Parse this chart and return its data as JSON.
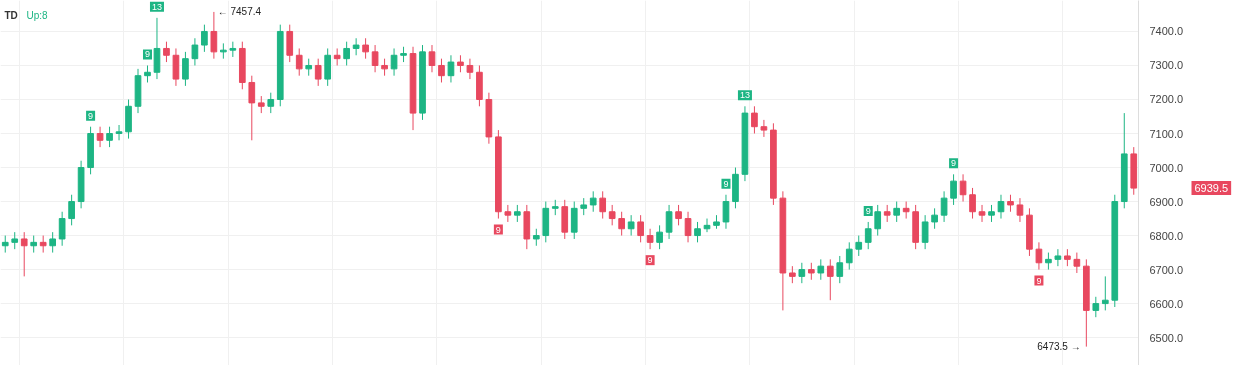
{
  "chart_data": {
    "type": "candlestick",
    "categories": [
      null,
      null,
      null,
      null,
      null,
      null,
      null,
      null,
      null,
      null,
      null,
      null,
      null,
      null,
      null,
      null,
      null,
      null,
      null,
      null,
      null,
      null,
      null,
      null,
      null,
      null,
      null,
      null,
      null,
      null,
      null,
      null,
      null,
      null,
      null,
      null,
      null,
      null,
      null,
      null,
      null,
      null,
      null,
      null,
      null,
      null,
      null,
      null,
      null,
      null,
      null,
      null,
      null,
      null,
      null,
      null,
      null,
      null,
      null,
      null,
      null,
      null,
      null,
      null,
      null,
      null,
      null,
      null,
      null,
      null,
      null,
      null,
      null,
      null,
      null,
      null,
      null,
      null,
      null,
      null,
      null,
      null,
      null,
      null,
      null,
      null,
      null,
      null,
      null,
      null,
      null,
      null,
      null,
      null,
      null,
      null,
      null,
      null,
      null,
      null,
      null,
      null,
      null,
      null,
      null,
      null,
      null,
      null,
      null,
      null,
      null,
      null,
      null,
      null,
      null,
      null,
      null,
      null,
      null,
      null
    ],
    "ohlc": [
      [
        6770,
        6800,
        6750,
        6780
      ],
      [
        6780,
        6810,
        6760,
        6790
      ],
      [
        6790,
        6810,
        6680,
        6770
      ],
      [
        6770,
        6800,
        6750,
        6780
      ],
      [
        6780,
        6800,
        6750,
        6770
      ],
      [
        6770,
        6810,
        6750,
        6790
      ],
      [
        6790,
        6870,
        6770,
        6850
      ],
      [
        6850,
        6920,
        6830,
        6900
      ],
      [
        6900,
        7020,
        6880,
        7000
      ],
      [
        7000,
        7120,
        6980,
        7100
      ],
      [
        7100,
        7120,
        7060,
        7080
      ],
      [
        7080,
        7120,
        7060,
        7100
      ],
      [
        7100,
        7125,
        7080,
        7105
      ],
      [
        7105,
        7200,
        7085,
        7180
      ],
      [
        7180,
        7290,
        7160,
        7270
      ],
      [
        7270,
        7300,
        7250,
        7280
      ],
      [
        7280,
        7440,
        7260,
        7350
      ],
      [
        7350,
        7370,
        7310,
        7330
      ],
      [
        7330,
        7350,
        7240,
        7260
      ],
      [
        7260,
        7340,
        7240,
        7320
      ],
      [
        7320,
        7380,
        7300,
        7360
      ],
      [
        7360,
        7420,
        7340,
        7400
      ],
      [
        7400,
        7457.4,
        7320,
        7340
      ],
      [
        7340,
        7365,
        7320,
        7345
      ],
      [
        7345,
        7370,
        7325,
        7350
      ],
      [
        7350,
        7370,
        7230,
        7250
      ],
      [
        7250,
        7270,
        7080,
        7190
      ],
      [
        7190,
        7210,
        7160,
        7180
      ],
      [
        7180,
        7220,
        7160,
        7200
      ],
      [
        7200,
        7420,
        7180,
        7400
      ],
      [
        7400,
        7420,
        7310,
        7330
      ],
      [
        7330,
        7350,
        7270,
        7290
      ],
      [
        7290,
        7320,
        7270,
        7300
      ],
      [
        7300,
        7320,
        7240,
        7260
      ],
      [
        7260,
        7350,
        7240,
        7330
      ],
      [
        7330,
        7350,
        7300,
        7320
      ],
      [
        7320,
        7370,
        7300,
        7350
      ],
      [
        7350,
        7380,
        7330,
        7360
      ],
      [
        7360,
        7380,
        7320,
        7340
      ],
      [
        7340,
        7360,
        7280,
        7300
      ],
      [
        7300,
        7320,
        7270,
        7290
      ],
      [
        7290,
        7350,
        7270,
        7330
      ],
      [
        7330,
        7355,
        7310,
        7335
      ],
      [
        7335,
        7355,
        7110,
        7160
      ],
      [
        7160,
        7360,
        7140,
        7340
      ],
      [
        7340,
        7360,
        7280,
        7300
      ],
      [
        7300,
        7320,
        7250,
        7270
      ],
      [
        7270,
        7330,
        7250,
        7310
      ],
      [
        7310,
        7330,
        7280,
        7300
      ],
      [
        7300,
        7320,
        7260,
        7280
      ],
      [
        7280,
        7300,
        7180,
        7200
      ],
      [
        7200,
        7220,
        7070,
        7090
      ],
      [
        7090,
        7110,
        6850,
        6870
      ],
      [
        6870,
        6890,
        6840,
        6860
      ],
      [
        6860,
        6890,
        6840,
        6870
      ],
      [
        6870,
        6890,
        6760,
        6790
      ],
      [
        6790,
        6820,
        6770,
        6800
      ],
      [
        6800,
        6900,
        6780,
        6880
      ],
      [
        6880,
        6905,
        6860,
        6885
      ],
      [
        6885,
        6905,
        6790,
        6810
      ],
      [
        6810,
        6900,
        6790,
        6880
      ],
      [
        6880,
        6910,
        6860,
        6890
      ],
      [
        6890,
        6930,
        6870,
        6910
      ],
      [
        6910,
        6930,
        6850,
        6870
      ],
      [
        6870,
        6890,
        6830,
        6850
      ],
      [
        6850,
        6870,
        6800,
        6820
      ],
      [
        6820,
        6860,
        6800,
        6840
      ],
      [
        6840,
        6860,
        6780,
        6800
      ],
      [
        6800,
        6820,
        6760,
        6780
      ],
      [
        6780,
        6830,
        6760,
        6810
      ],
      [
        6810,
        6890,
        6790,
        6870
      ],
      [
        6870,
        6890,
        6830,
        6850
      ],
      [
        6850,
        6870,
        6780,
        6800
      ],
      [
        6800,
        6840,
        6780,
        6820
      ],
      [
        6820,
        6850,
        6810,
        6830
      ],
      [
        6830,
        6860,
        6820,
        6840
      ],
      [
        6840,
        6920,
        6820,
        6900
      ],
      [
        6900,
        7000,
        6880,
        6980
      ],
      [
        6980,
        7180,
        6960,
        7160
      ],
      [
        7160,
        7180,
        7100,
        7120
      ],
      [
        7120,
        7140,
        7090,
        7110
      ],
      [
        7110,
        7130,
        6890,
        6910
      ],
      [
        6910,
        6930,
        6580,
        6690
      ],
      [
        6690,
        6710,
        6660,
        6680
      ],
      [
        6680,
        6720,
        6660,
        6700
      ],
      [
        6700,
        6720,
        6670,
        6690
      ],
      [
        6690,
        6730,
        6670,
        6710
      ],
      [
        6710,
        6730,
        6610,
        6680
      ],
      [
        6680,
        6740,
        6660,
        6720
      ],
      [
        6720,
        6780,
        6700,
        6760
      ],
      [
        6760,
        6800,
        6740,
        6780
      ],
      [
        6780,
        6840,
        6760,
        6820
      ],
      [
        6820,
        6890,
        6800,
        6870
      ],
      [
        6870,
        6890,
        6840,
        6860
      ],
      [
        6860,
        6900,
        6840,
        6880
      ],
      [
        6880,
        6900,
        6850,
        6870
      ],
      [
        6870,
        6890,
        6760,
        6780
      ],
      [
        6780,
        6860,
        6760,
        6840
      ],
      [
        6840,
        6880,
        6820,
        6860
      ],
      [
        6860,
        6930,
        6840,
        6910
      ],
      [
        6910,
        6980,
        6890,
        6960
      ],
      [
        6960,
        6980,
        6900,
        6920
      ],
      [
        6920,
        6940,
        6850,
        6870
      ],
      [
        6870,
        6890,
        6840,
        6860
      ],
      [
        6860,
        6890,
        6840,
        6870
      ],
      [
        6870,
        6920,
        6850,
        6900
      ],
      [
        6900,
        6920,
        6870,
        6890
      ],
      [
        6890,
        6910,
        6840,
        6860
      ],
      [
        6860,
        6880,
        6740,
        6760
      ],
      [
        6760,
        6780,
        6700,
        6720
      ],
      [
        6720,
        6750,
        6700,
        6730
      ],
      [
        6730,
        6760,
        6710,
        6740
      ],
      [
        6740,
        6760,
        6710,
        6730
      ],
      [
        6730,
        6750,
        6690,
        6710
      ],
      [
        6710,
        6730,
        6473.5,
        6580
      ],
      [
        6580,
        6620,
        6560,
        6600
      ],
      [
        6600,
        6680,
        6580,
        6610
      ],
      [
        6610,
        6920,
        6590,
        6900
      ],
      [
        6900,
        7160,
        6880,
        7040
      ],
      [
        7040,
        7060,
        6920,
        6939.5
      ]
    ],
    "colors": [
      "#1db584",
      "#1db584",
      "#e8485f",
      "#1db584",
      "#e8485f",
      "#1db584",
      "#1db584",
      "#1db584",
      "#1db584",
      "#1db584",
      "#e8485f",
      "#1db584",
      "#1db584",
      "#1db584",
      "#1db584",
      "#1db584",
      "#1db584",
      "#e8485f",
      "#e8485f",
      "#1db584",
      "#1db584",
      "#1db584",
      "#e8485f",
      "#1db584",
      "#1db584",
      "#e8485f",
      "#e8485f",
      "#e8485f",
      "#1db584",
      "#1db584",
      "#e8485f",
      "#e8485f",
      "#1db584",
      "#e8485f",
      "#1db584",
      "#e8485f",
      "#1db584",
      "#1db584",
      "#e8485f",
      "#e8485f",
      "#e8485f",
      "#1db584",
      "#1db584",
      "#e8485f",
      "#1db584",
      "#e8485f",
      "#e8485f",
      "#1db584",
      "#e8485f",
      "#e8485f",
      "#e8485f",
      "#e8485f",
      "#e8485f",
      "#e8485f",
      "#1db584",
      "#e8485f",
      "#1db584",
      "#1db584",
      "#1db584",
      "#e8485f",
      "#1db584",
      "#1db584",
      "#1db584",
      "#e8485f",
      "#e8485f",
      "#e8485f",
      "#1db584",
      "#e8485f",
      "#e8485f",
      "#1db584",
      "#1db584",
      "#e8485f",
      "#e8485f",
      "#1db584",
      "#1db584",
      "#1db584",
      "#1db584",
      "#1db584",
      "#1db584",
      "#e8485f",
      "#e8485f",
      "#e8485f",
      "#e8485f",
      "#e8485f",
      "#1db584",
      "#e8485f",
      "#1db584",
      "#e8485f",
      "#1db584",
      "#1db584",
      "#1db584",
      "#1db584",
      "#1db584",
      "#e8485f",
      "#1db584",
      "#e8485f",
      "#e8485f",
      "#1db584",
      "#1db584",
      "#1db584",
      "#1db584",
      "#e8485f",
      "#e8485f",
      "#e8485f",
      "#1db584",
      "#1db584",
      "#e8485f",
      "#e8485f",
      "#e8485f",
      "#e8485f",
      "#1db584",
      "#1db584",
      "#e8485f",
      "#e8485f",
      "#e8485f",
      "#1db584",
      "#1db584",
      "#1db584",
      "#1db584",
      "#e8485f"
    ],
    "ylim": [
      6418,
      7491
    ],
    "yticks": [
      {
        "value": 6500,
        "label": "6500.0"
      },
      {
        "value": 6600,
        "label": "6600.0"
      },
      {
        "value": 6700,
        "label": "6700.0"
      },
      {
        "value": 6800,
        "label": "6800.0"
      },
      {
        "value": 6900,
        "label": "6900.0"
      },
      {
        "value": 7000,
        "label": "7000.0"
      },
      {
        "value": 7100,
        "label": "7100.0"
      },
      {
        "value": 7200,
        "label": "7200.0"
      },
      {
        "value": 7300,
        "label": "7300.0"
      },
      {
        "value": 7400,
        "label": "7400.0"
      }
    ],
    "grid": true,
    "tick_labels": "y",
    "annotations": [
      "TD",
      "Up:8",
      "← 7457.4",
      "6473.5 →",
      "6939.5",
      "9",
      "9",
      "13",
      "9",
      "9",
      "9",
      "13",
      "9",
      "9",
      "9"
    ]
  }
}
